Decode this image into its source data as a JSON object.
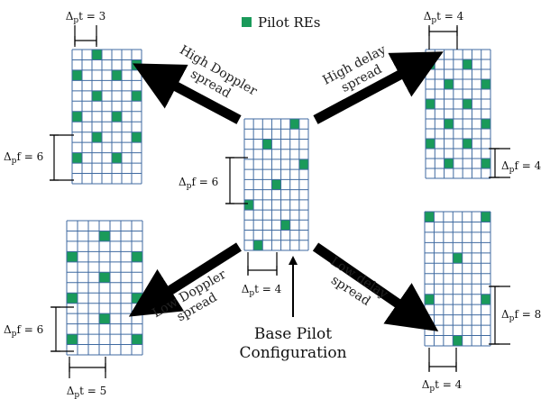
{
  "legend": {
    "label": "Pilot REs",
    "color": "#1a9a5a"
  },
  "colors": {
    "grid": "#3f6aa0",
    "pilot": "#1a9a5a",
    "arrow": "#000000"
  },
  "center": {
    "rows": 12,
    "cols": 7,
    "pilots": [
      [
        0,
        5
      ],
      [
        2,
        2
      ],
      [
        4,
        6
      ],
      [
        6,
        3
      ],
      [
        8,
        0
      ],
      [
        10,
        4
      ],
      [
        12,
        1
      ]
    ],
    "dt_label": "Δpt = 4",
    "df_label": "Δpf = 6",
    "caption_line1": "Base Pilot",
    "caption_line2": "Configuration"
  },
  "grids": {
    "high_doppler": {
      "rows": 12,
      "cols": 7,
      "pilots": [
        [
          0,
          2
        ],
        [
          1,
          6
        ],
        [
          2,
          0
        ],
        [
          2,
          4
        ],
        [
          4,
          2
        ],
        [
          4,
          6
        ],
        [
          6,
          0
        ],
        [
          6,
          4
        ],
        [
          8,
          2
        ],
        [
          8,
          6
        ],
        [
          10,
          0
        ],
        [
          10,
          4
        ]
      ],
      "dt_label": "Δpt = 3",
      "df_label": "Δpf = 6"
    },
    "high_delay": {
      "rows": 12,
      "cols": 7,
      "pilots": [
        [
          1,
          0
        ],
        [
          1,
          4
        ],
        [
          3,
          2
        ],
        [
          3,
          6
        ],
        [
          5,
          0
        ],
        [
          5,
          4
        ],
        [
          7,
          2
        ],
        [
          7,
          6
        ],
        [
          9,
          0
        ],
        [
          9,
          4
        ],
        [
          11,
          2
        ],
        [
          11,
          6
        ]
      ],
      "dt_label": "Δpt = 4",
      "df_label": "Δpf = 4"
    },
    "low_doppler": {
      "rows": 12,
      "cols": 7,
      "pilots": [
        [
          1,
          3
        ],
        [
          3,
          0
        ],
        [
          3,
          6
        ],
        [
          5,
          3
        ],
        [
          7,
          0
        ],
        [
          7,
          6
        ],
        [
          9,
          3
        ],
        [
          11,
          0
        ],
        [
          11,
          6
        ]
      ],
      "dt_label": "Δpt = 5",
      "df_label": "Δpf = 6"
    },
    "low_delay": {
      "rows": 12,
      "cols": 7,
      "pilots": [
        [
          0,
          0
        ],
        [
          0,
          6
        ],
        [
          4,
          3
        ],
        [
          8,
          0
        ],
        [
          8,
          6
        ],
        [
          12,
          3
        ]
      ],
      "dt_label": "Δpt = 4",
      "df_label": "Δpf = 8"
    }
  },
  "arrows": {
    "high_doppler": {
      "line1": "High Doppler",
      "line2": "spread"
    },
    "high_delay": {
      "line1": "High delay",
      "line2": "spread"
    },
    "low_doppler": {
      "line1": "Low Doppler",
      "line2": "spread"
    },
    "low_delay": {
      "line1": "Low delay",
      "line2": "spread"
    }
  }
}
